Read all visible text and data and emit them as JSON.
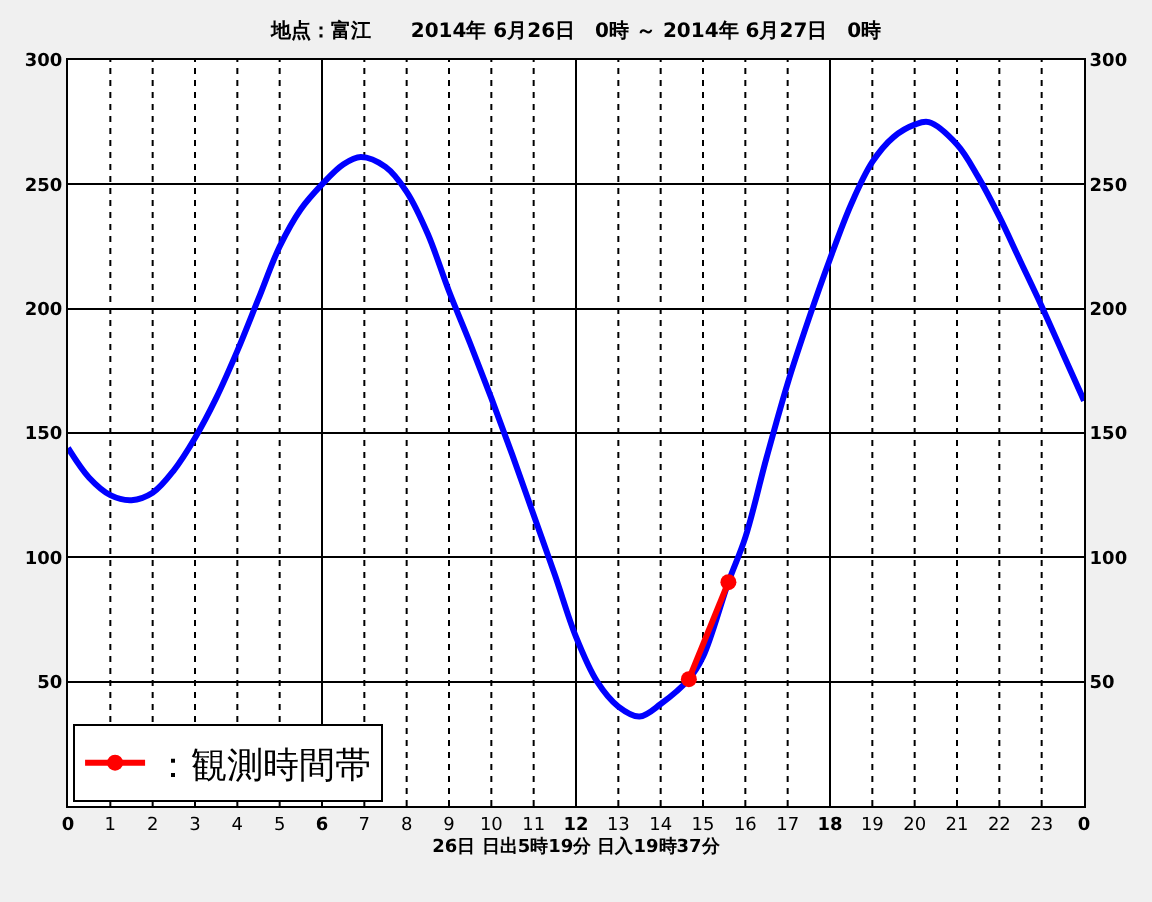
{
  "chart_data": {
    "type": "line",
    "title": "地点：富江　　2014年 6月26日　0時 ～ 2014年 6月27日　0時",
    "xlabel": "26日 日出5時19分 日入19時37分",
    "xlim": [
      "2014-06-26T00:00",
      "2014-06-27T00:00"
    ],
    "xticks": [
      {
        "value": "2014-06-26T00:00",
        "label": "0"
      },
      {
        "value": "2014-06-26T01:00",
        "label": "1"
      },
      {
        "value": "2014-06-26T02:00",
        "label": "2"
      },
      {
        "value": "2014-06-26T03:00",
        "label": "3"
      },
      {
        "value": "2014-06-26T04:00",
        "label": "4"
      },
      {
        "value": "2014-06-26T05:00",
        "label": "5"
      },
      {
        "value": "2014-06-26T06:00",
        "label": "6"
      },
      {
        "value": "2014-06-26T07:00",
        "label": "7"
      },
      {
        "value": "2014-06-26T08:00",
        "label": "8"
      },
      {
        "value": "2014-06-26T09:00",
        "label": "9"
      },
      {
        "value": "2014-06-26T10:00",
        "label": "10"
      },
      {
        "value": "2014-06-26T11:00",
        "label": "11"
      },
      {
        "value": "2014-06-26T12:00",
        "label": "12"
      },
      {
        "value": "2014-06-26T13:00",
        "label": "13"
      },
      {
        "value": "2014-06-26T14:00",
        "label": "14"
      },
      {
        "value": "2014-06-26T15:00",
        "label": "15"
      },
      {
        "value": "2014-06-26T16:00",
        "label": "16"
      },
      {
        "value": "2014-06-26T17:00",
        "label": "17"
      },
      {
        "value": "2014-06-26T18:00",
        "label": "18"
      },
      {
        "value": "2014-06-26T19:00",
        "label": "19"
      },
      {
        "value": "2014-06-26T20:00",
        "label": "20"
      },
      {
        "value": "2014-06-26T21:00",
        "label": "21"
      },
      {
        "value": "2014-06-26T22:00",
        "label": "22"
      },
      {
        "value": "2014-06-26T23:00",
        "label": "23"
      },
      {
        "value": "2014-06-27T00:00",
        "label": "0"
      }
    ],
    "ylim": [
      0,
      300
    ],
    "yticks": [
      50,
      100,
      150,
      200,
      250,
      300
    ],
    "y2lim": [
      0,
      300
    ],
    "y2ticks": [
      50,
      100,
      150,
      200,
      250,
      300
    ],
    "grid": true,
    "legend": "bottom left",
    "line_style": "solid",
    "series": [
      {
        "color": "#0000ff",
        "marker": "none",
        "x": [
          "2014-06-26T00:00",
          "2014-06-26T00:30",
          "2014-06-26T01:00",
          "2014-06-26T01:30",
          "2014-06-26T02:00",
          "2014-06-26T02:30",
          "2014-06-26T03:00",
          "2014-06-26T03:30",
          "2014-06-26T04:00",
          "2014-06-26T04:30",
          "2014-06-26T05:00",
          "2014-06-26T05:30",
          "2014-06-26T06:00",
          "2014-06-26T06:30",
          "2014-06-26T06:55",
          "2014-06-26T07:30",
          "2014-06-26T08:00",
          "2014-06-26T08:30",
          "2014-06-26T09:00",
          "2014-06-26T09:30",
          "2014-06-26T10:00",
          "2014-06-26T10:30",
          "2014-06-26T11:00",
          "2014-06-26T11:30",
          "2014-06-26T12:00",
          "2014-06-26T12:30",
          "2014-06-26T13:00",
          "2014-06-26T13:30",
          "2014-06-26T14:00",
          "2014-06-26T14:40",
          "2014-06-26T15:00",
          "2014-06-26T15:36",
          "2014-06-26T16:00",
          "2014-06-26T16:30",
          "2014-06-26T17:00",
          "2014-06-26T17:30",
          "2014-06-26T18:00",
          "2014-06-26T18:30",
          "2014-06-26T19:00",
          "2014-06-26T19:30",
          "2014-06-26T20:00",
          "2014-06-26T20:20",
          "2014-06-26T21:00",
          "2014-06-26T21:30",
          "2014-06-26T22:00",
          "2014-06-26T22:30",
          "2014-06-26T23:00",
          "2014-06-26T23:30",
          "2014-06-27T00:00"
        ],
        "values": [
          144,
          132,
          125,
          123,
          126,
          135,
          148,
          164,
          183,
          204,
          225,
          240,
          250,
          258,
          261,
          257,
          247,
          230,
          207,
          186,
          164,
          141,
          117,
          93,
          68,
          50,
          40,
          36,
          41,
          51,
          60,
          90,
          108,
          140,
          170,
          196,
          220,
          242,
          259,
          269,
          274,
          275,
          266,
          253,
          237,
          219,
          201,
          182,
          163
        ]
      },
      {
        "name": "：観測時間帯",
        "color": "#ff0000",
        "marker": "circle",
        "x": [
          "2014-06-26T14:40",
          "2014-06-26T15:36"
        ],
        "values": [
          51,
          90
        ]
      }
    ]
  }
}
